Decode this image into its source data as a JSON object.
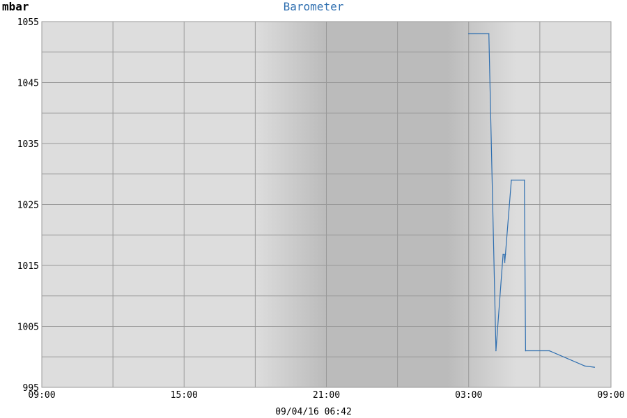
{
  "chart_data": {
    "type": "line",
    "title": "Barometer",
    "ylabel": "mbar",
    "xlabel": "",
    "footer": "09/04/16 06:42",
    "ylim": [
      995,
      1055
    ],
    "y_ticks": [
      "1055",
      "1045",
      "1035",
      "1025",
      "1015",
      "1005",
      "995"
    ],
    "x_ticks": [
      "09:00",
      "15:00",
      "21:00",
      "03:00",
      "09:00"
    ],
    "x_range_hours": [
      0,
      24
    ],
    "grid": true,
    "night_shading": {
      "start_hour": 9,
      "full_start_hour": 12,
      "full_end_hour": 17.1,
      "end_hour": 20
    },
    "series": [
      {
        "color": "#2f6fb0",
        "points": [
          [
            18.0,
            1053
          ],
          [
            18.85,
            1053
          ],
          [
            19.15,
            1001
          ],
          [
            19.45,
            1016.8
          ],
          [
            19.5,
            1016.8
          ],
          [
            19.52,
            1015.5
          ],
          [
            19.55,
            1016.8
          ],
          [
            19.8,
            1029
          ],
          [
            20.35,
            1029
          ],
          [
            20.4,
            1001
          ],
          [
            21.4,
            1001
          ],
          [
            22.9,
            998.5
          ],
          [
            23.3,
            998.3
          ]
        ]
      }
    ]
  },
  "colors": {
    "plot_bg": "#dddddd",
    "night_bg": "#bbbbbb",
    "grid": "#999999",
    "title": "#2f6fb0",
    "line": "#2f6fb0"
  }
}
